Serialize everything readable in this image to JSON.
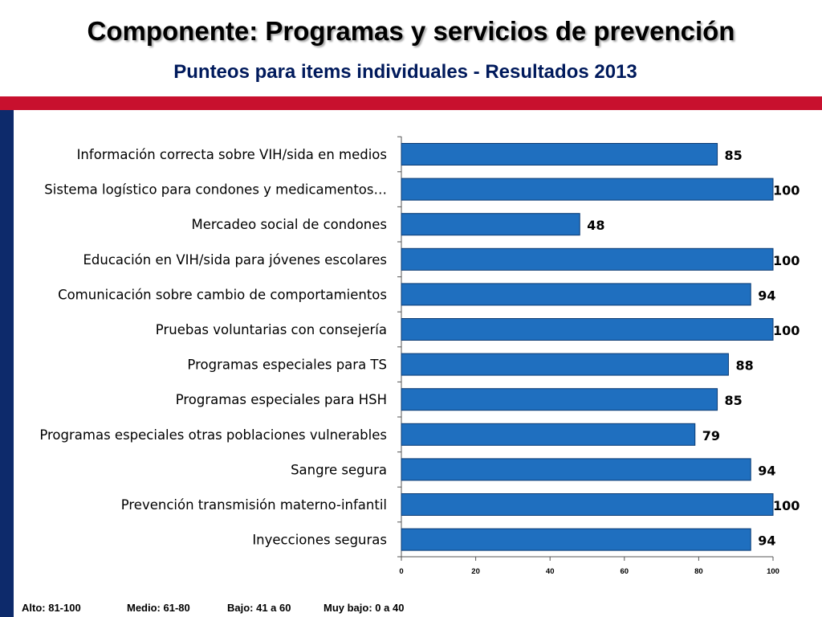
{
  "header": {
    "title": "Componente: Programas y servicios de prevención",
    "subtitle": "Punteos para items individuales - Resultados 2013"
  },
  "colors": {
    "bar": "#1f6fbf",
    "bar_stroke": "#0a3a73",
    "red_band": "#c8102e",
    "blue_strip": "#0d2a6b"
  },
  "chart_data": {
    "type": "bar",
    "orientation": "horizontal",
    "categories": [
      "Información correcta sobre VIH/sida en medios",
      "Sistema logístico para condones y medicamentos…",
      "Mercadeo social de condones",
      "Educación en VIH/sida para jóvenes escolares",
      "Comunicación sobre cambio de comportamientos",
      "Pruebas voluntarias con consejería",
      "Programas especiales para TS",
      "Programas especiales para HSH",
      "Programas especiales otras poblaciones vulnerables",
      "Sangre segura",
      "Prevención transmisión materno-infantil",
      "Inyecciones seguras"
    ],
    "values": [
      85,
      100,
      48,
      100,
      94,
      100,
      88,
      85,
      79,
      94,
      100,
      94
    ],
    "xlim": [
      0,
      100
    ],
    "xticks": [
      0,
      20,
      40,
      60,
      80,
      100
    ],
    "data_labels": true,
    "grid": false,
    "legend": "none"
  },
  "footer_legend": {
    "alto": "Alto:  81-100",
    "medio": "Medio: 61-80",
    "bajo": "Bajo:  41 a 60",
    "muy_bajo": "Muy bajo:  0 a 40"
  }
}
